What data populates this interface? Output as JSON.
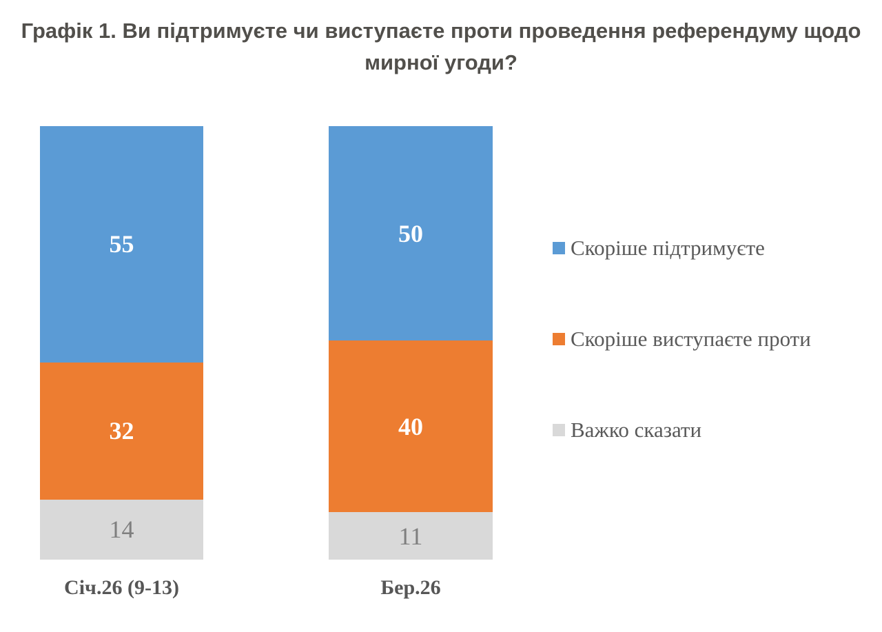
{
  "title": "Графік 1. Ви підтримуєте чи виступаєте проти проведення референдуму щодо мирної угоди?",
  "chart_data": {
    "type": "bar",
    "subtype": "stacked-column",
    "title": "Графік 1. Ви підтримуєте чи виступаєте проти проведення референдуму щодо мирної угоди?",
    "categories": [
      "Січ.26 (9-13)",
      "Бер.26"
    ],
    "series": [
      {
        "name": "Скоріше підтримуєте",
        "color": "#5B9BD5",
        "label_color": "#FFFFFF",
        "values": [
          55,
          50
        ]
      },
      {
        "name": "Скоріше виступаєте проти",
        "color": "#ED7D31",
        "label_color": "#FFFFFF",
        "values": [
          32,
          40
        ]
      },
      {
        "name": "Важко сказати",
        "color": "#D9D9D9",
        "label_color": "#7F7F7F",
        "values": [
          14,
          11
        ]
      }
    ],
    "stack_totals": [
      101,
      101
    ],
    "xlabel": "",
    "ylabel": "",
    "ylim": [
      0,
      101
    ],
    "grid": "off",
    "axes_visible": false,
    "legend_position": "right",
    "value_labels": "inside-center"
  },
  "colors": {
    "background": "#FFFFFF",
    "title_text": "#514F4B",
    "category_text": "#565656",
    "legend_text": "#595959"
  }
}
